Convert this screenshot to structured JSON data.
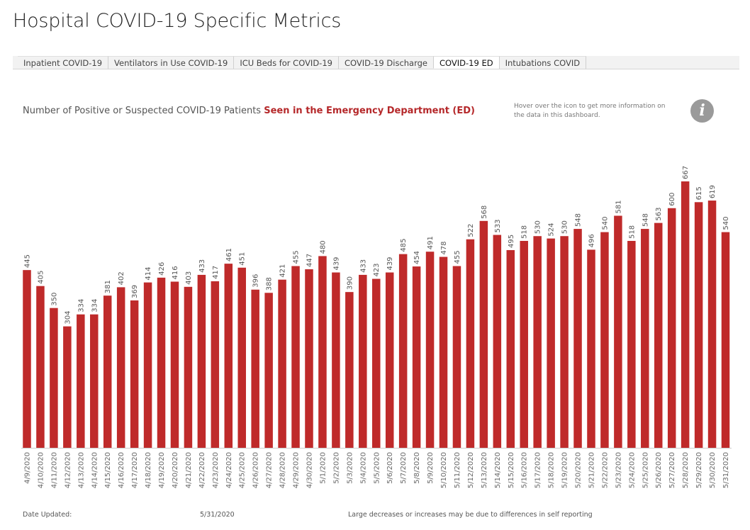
{
  "page": {
    "title": "Hospital COVID-19 Specific Metrics"
  },
  "tabs": [
    {
      "label": "Inpatient COVID-19",
      "active": false
    },
    {
      "label": "Ventilators in Use COVID-19",
      "active": false
    },
    {
      "label": "ICU Beds for COVID-19",
      "active": false
    },
    {
      "label": "COVID-19 Discharge",
      "active": false
    },
    {
      "label": "COVID-19 ED",
      "active": true
    },
    {
      "label": "Intubations COVID",
      "active": false
    }
  ],
  "chart_header": {
    "prefix": "Number of Positive or Suspected COVID-19 Patients ",
    "highlight": "Seen in the Emergency Department (ED)",
    "highlight_color": "#b5282a"
  },
  "info": {
    "note": "Hover over the icon to get more information on the data in this dashboard.",
    "icon": "info-icon",
    "glyph": "i"
  },
  "footer": {
    "date_updated_label": "Date Updated:",
    "date_updated_value": "5/31/2020",
    "note": "Large decreases or increases may be due to differences in self reporting"
  },
  "chart_data": {
    "type": "bar",
    "bar_color": "#bf2a2a",
    "categories": [
      "4/9/2020",
      "4/10/2020",
      "4/11/2020",
      "4/12/2020",
      "4/13/2020",
      "4/14/2020",
      "4/15/2020",
      "4/16/2020",
      "4/17/2020",
      "4/18/2020",
      "4/19/2020",
      "4/20/2020",
      "4/21/2020",
      "4/22/2020",
      "4/23/2020",
      "4/24/2020",
      "4/25/2020",
      "4/26/2020",
      "4/27/2020",
      "4/28/2020",
      "4/29/2020",
      "4/30/2020",
      "5/1/2020",
      "5/2/2020",
      "5/3/2020",
      "5/4/2020",
      "5/5/2020",
      "5/6/2020",
      "5/7/2020",
      "5/8/2020",
      "5/9/2020",
      "5/10/2020",
      "5/11/2020",
      "5/12/2020",
      "5/13/2020",
      "5/14/2020",
      "5/15/2020",
      "5/16/2020",
      "5/17/2020",
      "5/18/2020",
      "5/19/2020",
      "5/20/2020",
      "5/21/2020",
      "5/22/2020",
      "5/23/2020",
      "5/24/2020",
      "5/25/2020",
      "5/26/2020",
      "5/27/2020",
      "5/28/2020",
      "5/29/2020",
      "5/30/2020",
      "5/31/2020"
    ],
    "values": [
      445,
      405,
      350,
      304,
      334,
      334,
      381,
      402,
      369,
      414,
      426,
      416,
      403,
      433,
      417,
      461,
      451,
      396,
      388,
      421,
      455,
      447,
      480,
      439,
      390,
      433,
      423,
      439,
      485,
      454,
      491,
      478,
      455,
      522,
      568,
      533,
      495,
      518,
      530,
      524,
      530,
      548,
      496,
      540,
      581,
      518,
      548,
      563,
      600,
      667,
      615,
      619,
      540
    ],
    "ylim": [
      0,
      700
    ],
    "grid": false,
    "data_labels": true
  }
}
